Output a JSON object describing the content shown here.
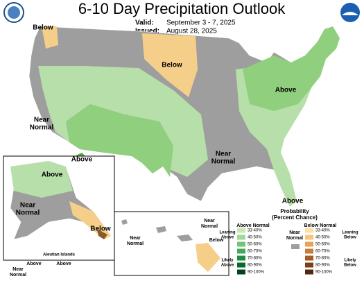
{
  "header": {
    "title": "6-10 Day Precipitation Outlook",
    "valid_label": "Valid:",
    "valid": "September 3 - 7, 2025",
    "issued_label": "Issued:",
    "issued": "August 28, 2025"
  },
  "conus_labels": [
    [
      "Below"
    ],
    [
      "Below"
    ],
    [
      "Near",
      "Normal"
    ],
    [
      "Above"
    ],
    [
      "Above"
    ],
    [
      "Near",
      "Normal"
    ],
    [
      "Above"
    ]
  ],
  "alaska_labels": [
    [
      "Above"
    ],
    [
      "Near",
      "Normal"
    ],
    [
      "Below"
    ],
    [
      "Above"
    ],
    [
      "Near",
      "Normal"
    ],
    [
      "Above"
    ]
  ],
  "aleutian": "Aleutian Islands",
  "hawaii_labels": [
    [
      "Near",
      "Normal"
    ],
    [
      "Near",
      "Normal"
    ],
    [
      "Below"
    ]
  ],
  "legend": {
    "title": [
      "Probability",
      "(Percent Chance)"
    ],
    "above": {
      "heading": "Above Normal",
      "ranges": [
        "33-40%",
        "40-50%",
        "50-60%",
        "60-70%",
        "70-80%",
        "80-90%",
        "90-100%"
      ],
      "leaning": [
        "Leaning",
        "Above"
      ],
      "likely": [
        "Likely",
        "Above"
      ]
    },
    "near": {
      "heading": [
        "Near",
        "Normal"
      ]
    },
    "below": {
      "heading": "Below Normal",
      "ranges": [
        "33-40%",
        "40-50%",
        "50-60%",
        "60-70%",
        "70-80%",
        "80-90%",
        "90-100%"
      ],
      "leaning": [
        "Leaning",
        "Below"
      ],
      "likely": [
        "Likely",
        "Below"
      ]
    }
  }
}
